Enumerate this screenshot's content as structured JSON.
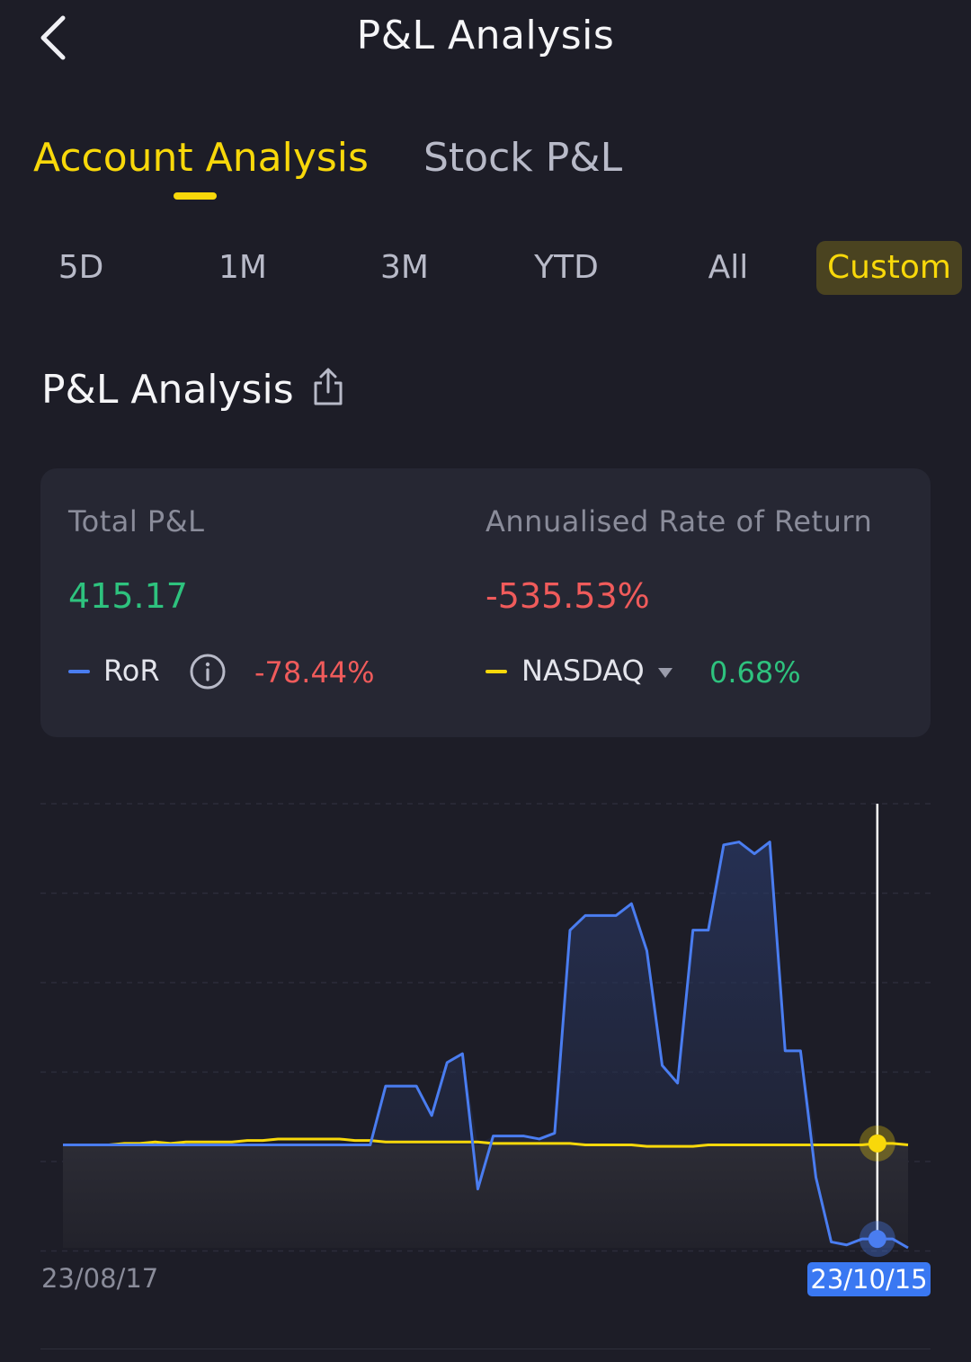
{
  "header": {
    "title": "P&L Analysis",
    "back_icon": "chevron-left-icon"
  },
  "main_tabs": [
    {
      "label": "Account Analysis",
      "active": true
    },
    {
      "label": "Stock P&L",
      "active": false
    }
  ],
  "periods": [
    {
      "label": "5D",
      "active": false
    },
    {
      "label": "1M",
      "active": false
    },
    {
      "label": "3M",
      "active": false
    },
    {
      "label": "YTD",
      "active": false
    },
    {
      "label": "All",
      "active": false
    },
    {
      "label": "Custom",
      "active": true
    }
  ],
  "section": {
    "title": "P&L Analysis",
    "share_icon": "share-icon"
  },
  "summary": {
    "total_pl_label": "Total P&L",
    "total_pl_value": "415.17",
    "annualised_label": "Annualised Rate of Return",
    "annualised_value": "-535.53%",
    "ror_label": "RoR",
    "ror_value": "-78.44%",
    "benchmark_label": "NASDAQ",
    "benchmark_value": "0.68%"
  },
  "colors": {
    "background": "#1d1d27",
    "card": "#262733",
    "accent_yellow": "#f8d80a",
    "ror_blue": "#4a7df0",
    "positive_green": "#2ec27e",
    "negative_red": "#f05b5b",
    "date_badge": "#3a78f2"
  },
  "chart_data": {
    "type": "line",
    "series": [
      {
        "name": "RoR",
        "color": "#4a7df0",
        "values": [
          0.0,
          0.0,
          0.0,
          0.0,
          0.0,
          0.0,
          0.0,
          0.0,
          0.0,
          0.0,
          0.0,
          0.0,
          0.0,
          0.0,
          0.0,
          0.0,
          0.0,
          0.0,
          0.0,
          0.0,
          0.0,
          2.0,
          2.0,
          2.0,
          1.0,
          2.8,
          3.1,
          -1.5,
          0.3,
          0.3,
          0.3,
          0.2,
          0.4,
          7.3,
          7.8,
          7.8,
          7.8,
          8.2,
          6.6,
          2.7,
          2.1,
          7.3,
          7.3,
          10.2,
          10.3,
          9.9,
          10.3,
          3.2,
          3.2,
          -1.1,
          -3.3,
          -3.4,
          -3.2,
          -3.2,
          -3.2,
          -3.5
        ]
      },
      {
        "name": "NASDAQ",
        "color": "#f8d80a",
        "values": [
          0.0,
          0.0,
          0.0,
          0.0,
          0.05,
          0.05,
          0.1,
          0.05,
          0.1,
          0.1,
          0.1,
          0.1,
          0.15,
          0.15,
          0.2,
          0.2,
          0.2,
          0.2,
          0.2,
          0.15,
          0.15,
          0.1,
          0.1,
          0.1,
          0.1,
          0.1,
          0.1,
          0.1,
          0.05,
          0.05,
          0.05,
          0.05,
          0.05,
          0.05,
          0.0,
          0.0,
          0.0,
          0.0,
          -0.05,
          -0.05,
          -0.05,
          -0.05,
          0.0,
          0.0,
          0.0,
          0.0,
          0.0,
          0.0,
          0.0,
          0.0,
          0.0,
          0.0,
          0.0,
          0.05,
          0.05,
          0.0
        ]
      }
    ],
    "x_start_label": "23/08/17",
    "x_end_label": "23/10/15",
    "ylim": [
      -3.5,
      10.5
    ],
    "grid": true
  }
}
